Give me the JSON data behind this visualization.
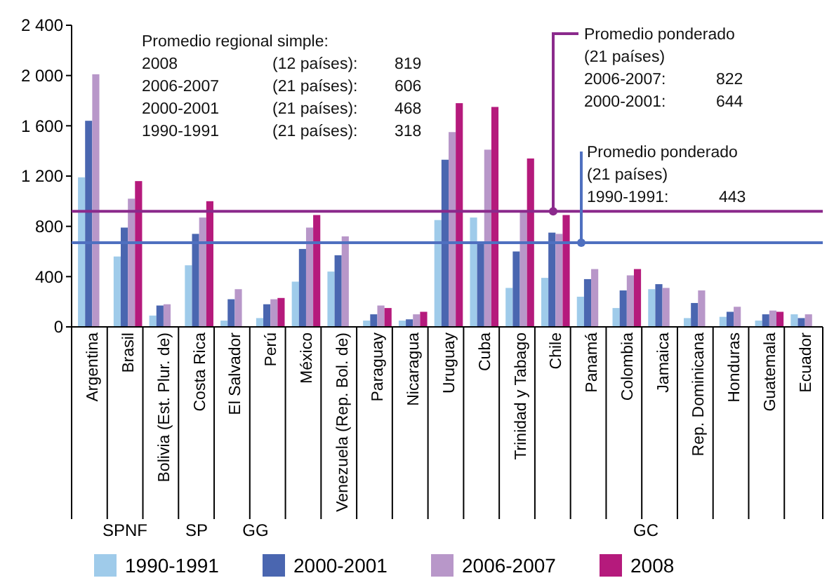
{
  "chart_data": {
    "type": "bar",
    "categories": [
      "Argentina",
      "Brasil",
      "Bolivia (Est. Plur. de)",
      "Costa Rica",
      "El Salvador",
      "Perú",
      "México",
      "Venezuela (Rep. Bol. de)",
      "Paraguay",
      "Nicaragua",
      "Uruguay",
      "Cuba",
      "Trinidad y Tabago",
      "Chile",
      "Panamá",
      "Colombia",
      "Jamaica",
      "Rep. Dominicana",
      "Honduras",
      "Guatemala",
      "Ecuador"
    ],
    "series": [
      {
        "name": "1990-1991",
        "color": "#9fcbea",
        "values": [
          1190,
          560,
          90,
          490,
          50,
          70,
          360,
          440,
          50,
          50,
          850,
          870,
          310,
          390,
          240,
          150,
          300,
          70,
          80,
          50,
          100
        ]
      },
      {
        "name": "2000-2001",
        "color": "#4a66b0",
        "values": [
          1640,
          790,
          170,
          740,
          220,
          180,
          620,
          570,
          100,
          60,
          1330,
          660,
          600,
          750,
          380,
          290,
          340,
          190,
          120,
          100,
          70
        ]
      },
      {
        "name": "2006-2007",
        "color": "#b897c9",
        "values": [
          2010,
          1020,
          180,
          870,
          300,
          220,
          790,
          720,
          170,
          100,
          1550,
          1410,
          910,
          740,
          460,
          410,
          310,
          290,
          160,
          130,
          100
        ]
      },
      {
        "name": "2008",
        "color": "#b51a7c",
        "values": [
          null,
          1160,
          null,
          1000,
          null,
          230,
          890,
          null,
          150,
          120,
          1780,
          1750,
          1340,
          890,
          null,
          460,
          null,
          null,
          null,
          120,
          null
        ]
      }
    ],
    "ylim": [
      0,
      2400
    ],
    "yticks": [
      0,
      {
        "value": 400,
        "label": "400"
      },
      {
        "value": 800,
        "label": "800"
      },
      {
        "value": 1200,
        "label": "1 200"
      },
      {
        "value": 1600,
        "label": "1 600"
      },
      {
        "value": 2000,
        "label": "2 000"
      },
      {
        "value": 2400,
        "label": "2 400"
      }
    ],
    "grid": false,
    "legend": "bottom",
    "ref_lines": [
      {
        "axis": "y",
        "value": 920,
        "color": "#8b2a8c"
      },
      {
        "axis": "y",
        "value": 670,
        "color": "#4f70c0"
      }
    ],
    "annotations": [
      "Promedio regional simple:\n2008\t(12 países):\t819\n2006-2007\t(21 países):\t606\n2000-2001\t(21 países):\t468\n1990-1991\t(21 países):\t318",
      "Promedio ponderado\n(21 países)\n2006-2007:\t822\n2000-2001:\t644",
      "Promedio ponderado\n(21 países)\n1990-1991:\t443",
      "SPNF",
      "SP",
      "GG",
      "GC"
    ]
  }
}
